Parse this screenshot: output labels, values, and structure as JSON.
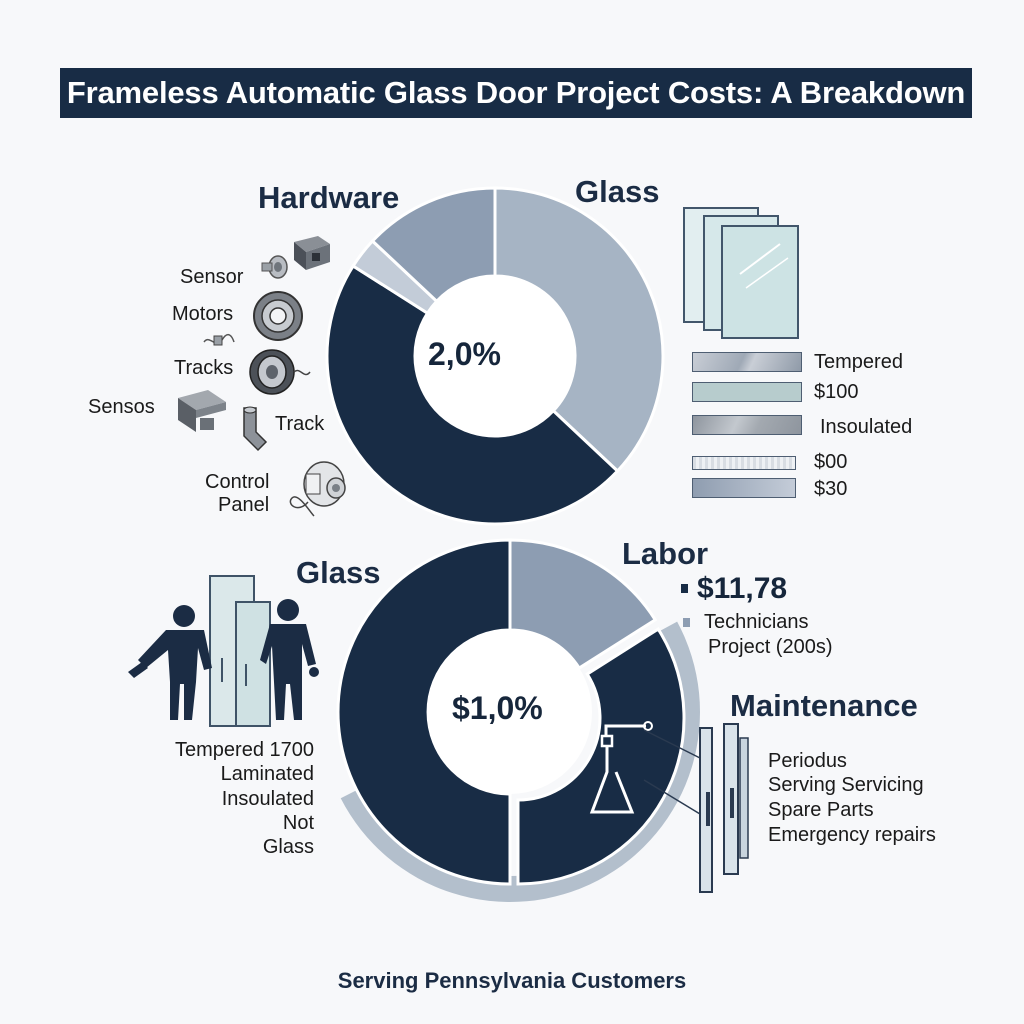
{
  "title": "Frameless Automatic Glass Door Project Costs: A Breakdown",
  "footer": "Serving Pennsylvania Customers",
  "colors": {
    "navy": "#182c45",
    "slate": "#8d9db2",
    "light_slate": "#a6b4c4",
    "pale": "#c3ccd8",
    "background": "#f7f8fa"
  },
  "top": {
    "center_value": "2,0%",
    "hardware_label": "Hardware",
    "glass_label": "Glass",
    "hardware_items": [
      "Sensor",
      "Motors",
      "Tracks",
      "Sensos",
      "Track",
      "Control",
      "Panel"
    ],
    "glass_items": [
      "Tempered",
      "$100",
      "Insoulated",
      "$00",
      "$30"
    ]
  },
  "bottom": {
    "center_value": "$1,0%",
    "glass_label": "Glass",
    "labor_label": "Labor",
    "labor_amount": "$11,78",
    "labor_lines": [
      "Technicians",
      "Project (200s)"
    ],
    "glass_lines": [
      "Tempered 1700",
      "Laminated",
      "Insoulated",
      "Not",
      "Glass"
    ],
    "maintenance_label": "Maintenance",
    "maintenance_lines": [
      "Periodus",
      "Serving Servicing",
      "Spare Parts",
      "Emergency repairs"
    ]
  },
  "chart_data": [
    {
      "type": "pie",
      "variant": "donut",
      "center_label": "2,0%",
      "categories": [
        "Glass",
        "Navy segment",
        "Pale segment",
        "Hardware"
      ],
      "values": [
        37,
        47,
        3,
        13
      ],
      "colors": [
        "#a6b4c4",
        "#182c45",
        "#c3ccd8",
        "#8d9db2"
      ]
    },
    {
      "type": "pie",
      "variant": "donut",
      "center_label": "$1,0%",
      "categories": [
        "Labor",
        "Maintenance",
        "Glass"
      ],
      "values": [
        16,
        34,
        50
      ],
      "colors": [
        "#8d9db2",
        "#182c45",
        "#182c45"
      ]
    }
  ]
}
